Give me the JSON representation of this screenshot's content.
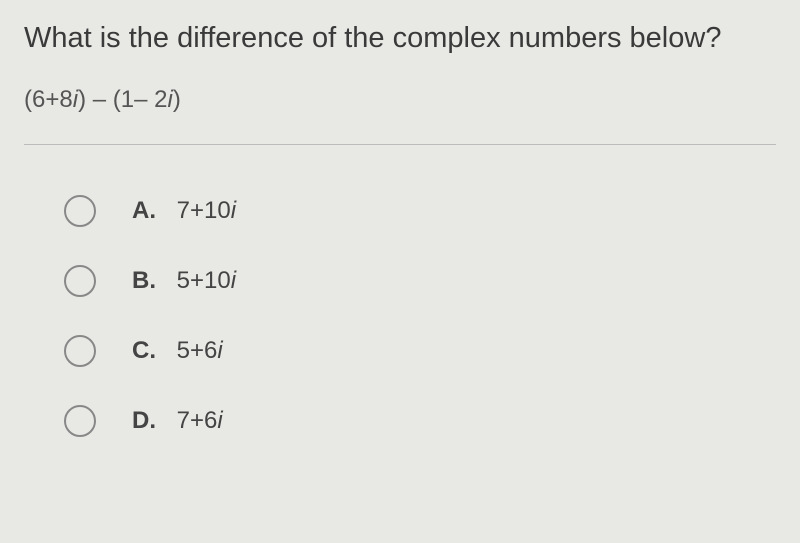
{
  "question": {
    "prompt": "What is the difference of the complex numbers below?",
    "expression": {
      "first_real": "6",
      "first_imag": "8",
      "second_real": "1",
      "second_imag": "2"
    }
  },
  "options": [
    {
      "letter": "A.",
      "real": "7",
      "imag": "10"
    },
    {
      "letter": "B.",
      "real": "5",
      "imag": "10"
    },
    {
      "letter": "C.",
      "real": "5",
      "imag": "6"
    },
    {
      "letter": "D.",
      "real": "7",
      "imag": "6"
    }
  ],
  "colors": {
    "background": "#e8e8e4",
    "text_primary": "#3a3a3a",
    "text_secondary": "#555",
    "radio_border": "#888",
    "divider": "#bbb"
  },
  "typography": {
    "question_fontsize": 29,
    "expression_fontsize": 24,
    "option_fontsize": 24
  }
}
